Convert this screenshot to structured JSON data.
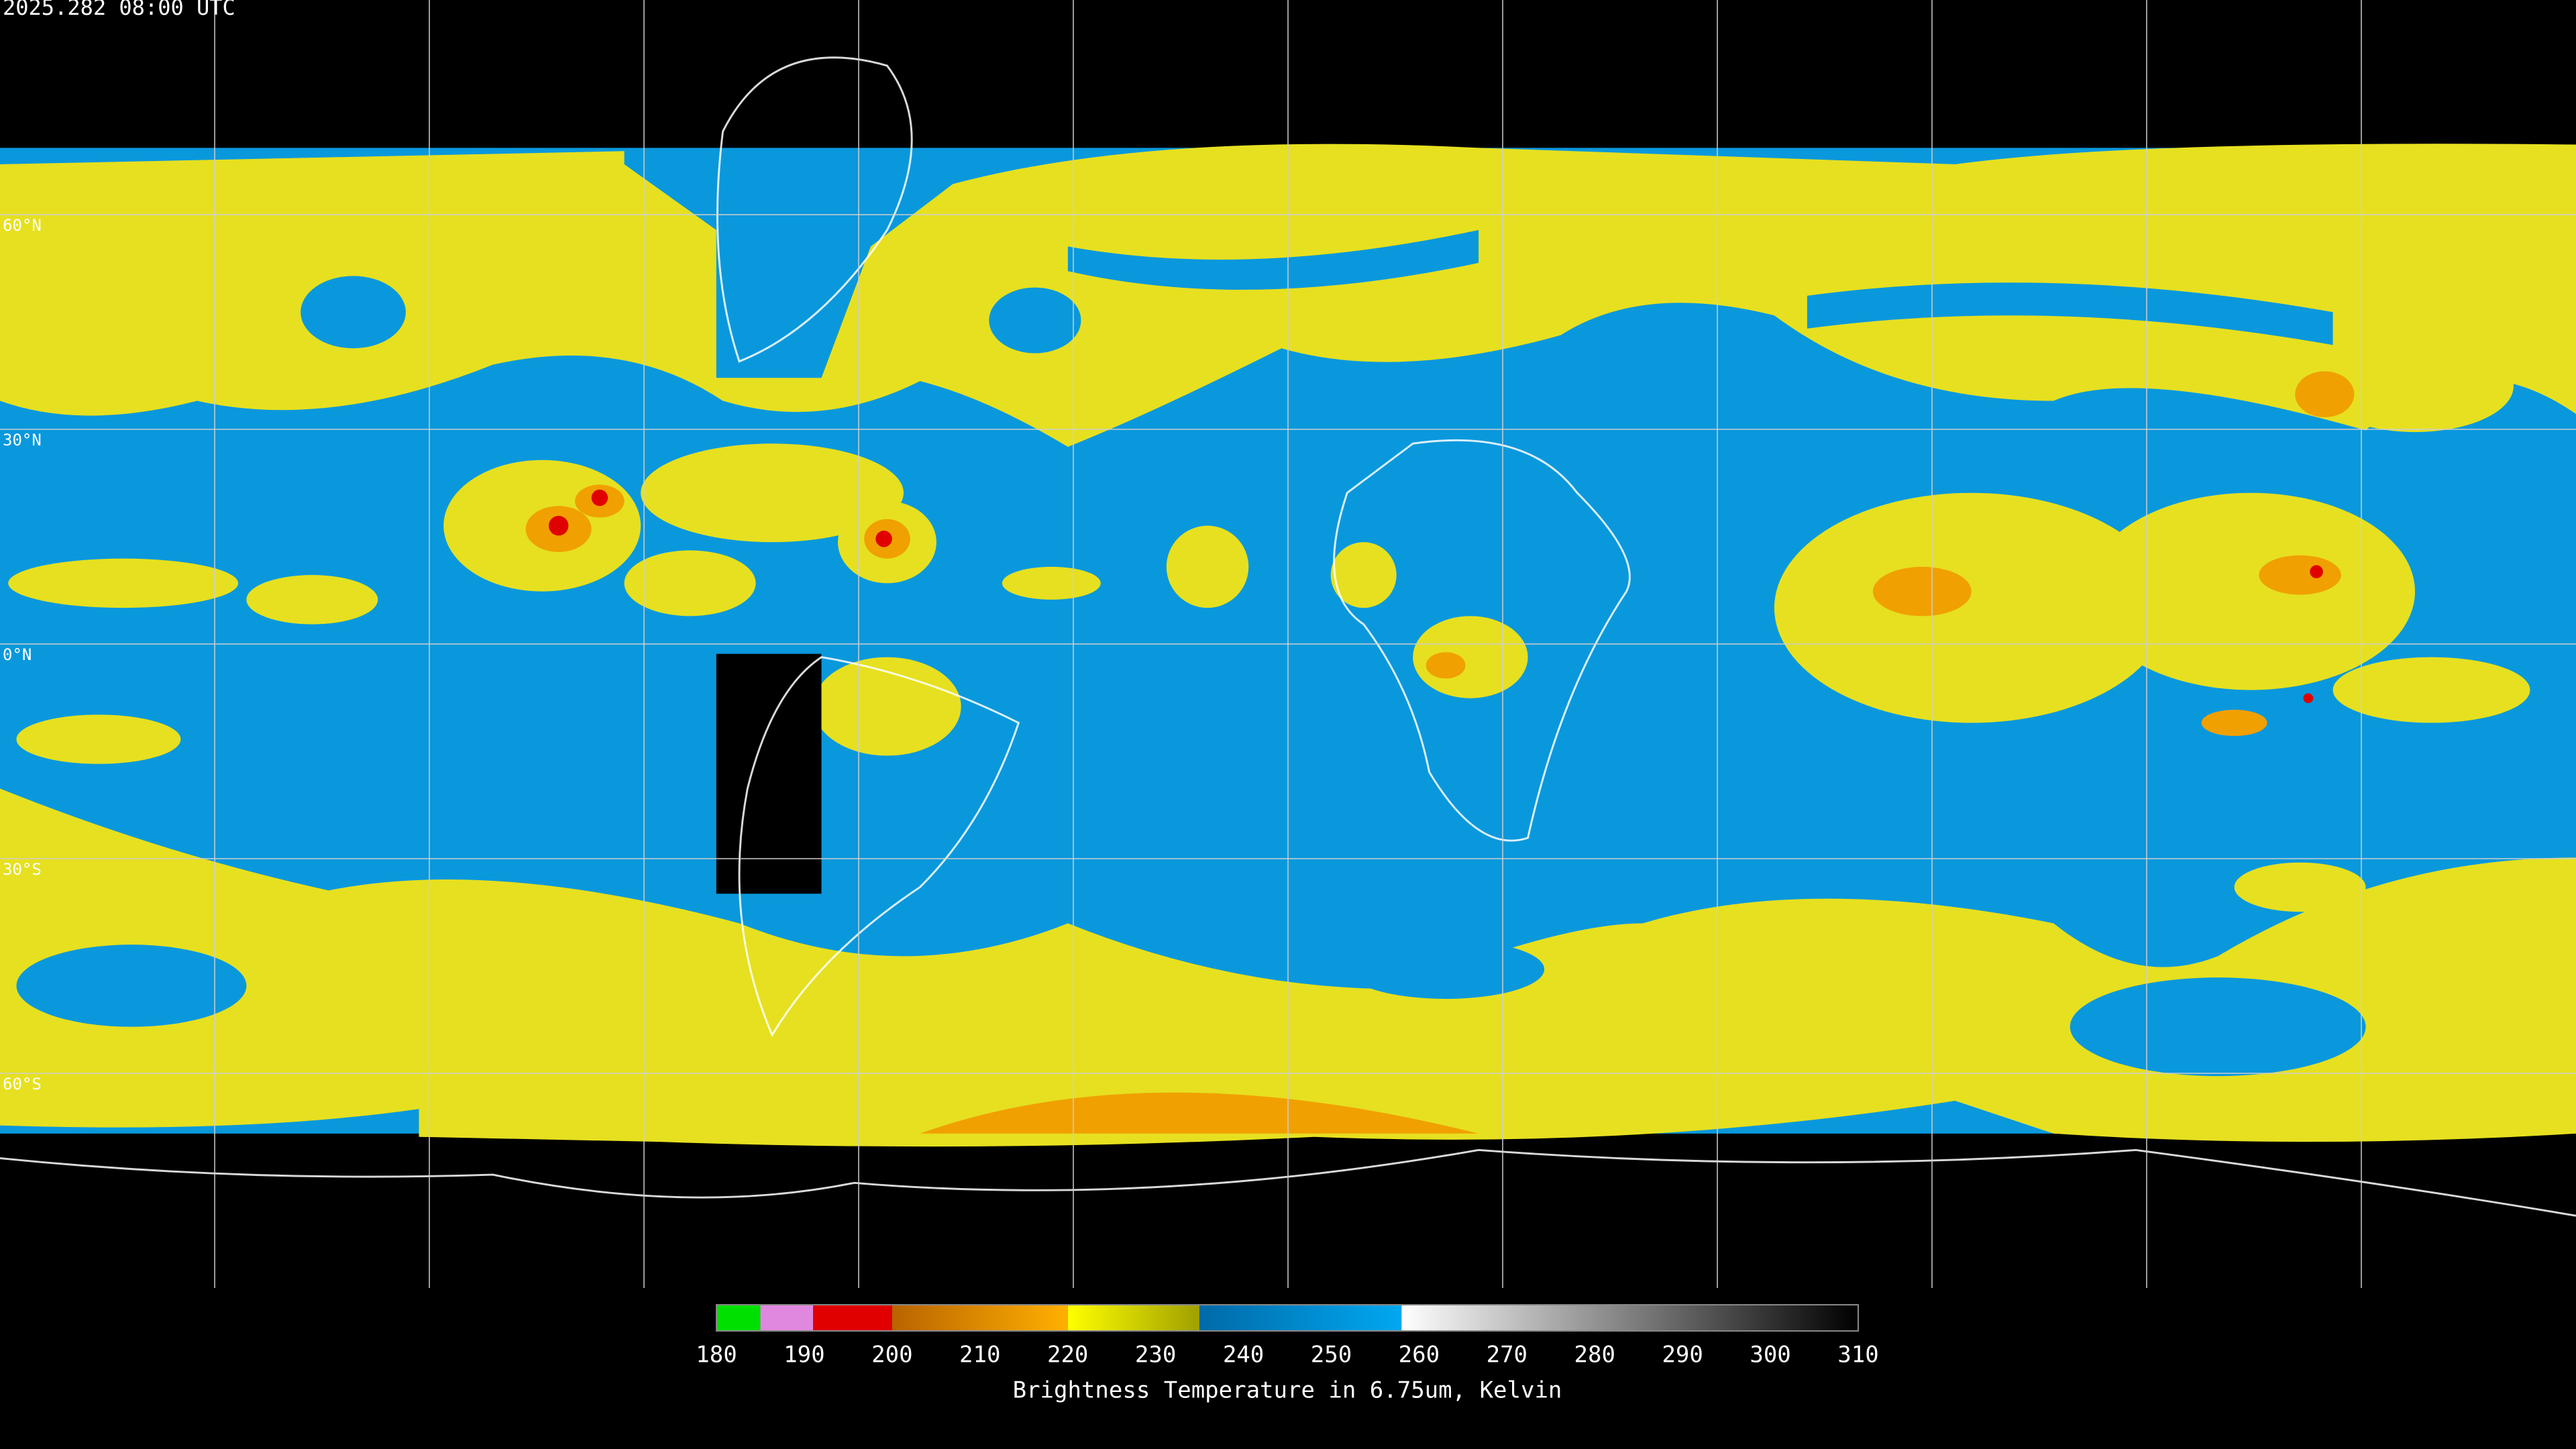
{
  "header": {
    "timestamp": "2025.282 08:00 UTC"
  },
  "map": {
    "lon_lim": [
      -180,
      180
    ],
    "lat_lim": [
      -90,
      90
    ],
    "lon_grid": [
      -150,
      -120,
      -90,
      -60,
      -30,
      0,
      30,
      60,
      90,
      120,
      150
    ],
    "lat_grid": [
      {
        "value": 60,
        "label": "60°N"
      },
      {
        "value": 30,
        "label": "30°N"
      },
      {
        "value": 0,
        "label": "0°N"
      },
      {
        "value": -30,
        "label": "30°S"
      },
      {
        "value": -60,
        "label": "60°S"
      }
    ]
  },
  "colorbar": {
    "lim": [
      180,
      310
    ],
    "ticks": [
      180,
      190,
      200,
      210,
      220,
      230,
      240,
      250,
      260,
      270,
      280,
      290,
      300,
      310
    ],
    "segments": [
      {
        "from": 180,
        "to": 185,
        "color": "#00e000",
        "color_to": "#00e000"
      },
      {
        "from": 185,
        "to": 191,
        "color": "#e088e0",
        "color_to": "#e088e0"
      },
      {
        "from": 191,
        "to": 200,
        "color": "#e00000",
        "color_to": "#e00000"
      },
      {
        "from": 200,
        "to": 220,
        "color": "#b86400",
        "color_to": "#ffb000"
      },
      {
        "from": 220,
        "to": 235,
        "color": "#ffff00",
        "color_to": "#a0a000"
      },
      {
        "from": 235,
        "to": 258,
        "color": "#006aa8",
        "color_to": "#00a8f0"
      },
      {
        "from": 258,
        "to": 310,
        "color": "#ffffff",
        "color_to": "#000000"
      }
    ],
    "caption": "Brightness Temperature in 6.75um, Kelvin"
  }
}
